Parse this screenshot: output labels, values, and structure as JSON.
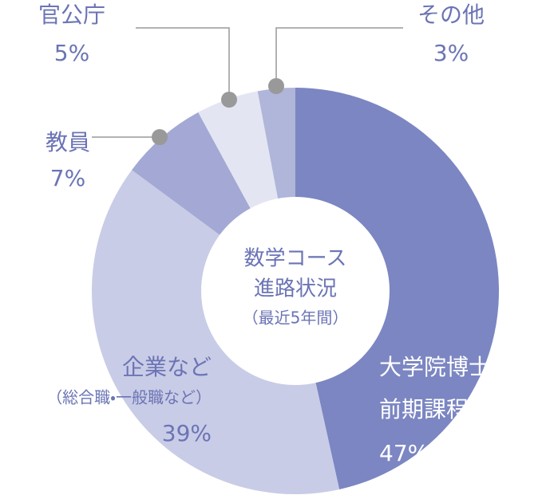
{
  "chart_data": {
    "type": "donut",
    "title": [
      "数学コース",
      "進路状況"
    ],
    "subtitle": "（最近5年間）",
    "categories": [
      [
        "大学院博士",
        "前期課程 進学"
      ],
      [
        "企業など",
        "（総合職・一般職など）"
      ],
      [
        "教員"
      ],
      [
        "官公庁"
      ],
      [
        "その他"
      ]
    ],
    "values": [
      47,
      39,
      7,
      5,
      3
    ],
    "value_labels": [
      "47%",
      "39%",
      "7%",
      "5%",
      "3%"
    ],
    "colors": [
      "#7b86c2",
      "#c9cce6",
      "#a3a9d4",
      "#e3e5f2",
      "#b0b5da"
    ]
  }
}
